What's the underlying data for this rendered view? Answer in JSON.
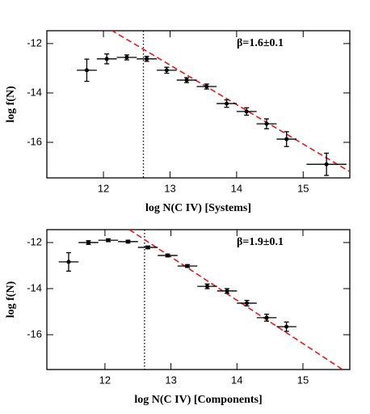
{
  "chart_data": [
    {
      "type": "scatter",
      "x_label": "log N(C IV) [Systems]",
      "y_label": "log f(N)",
      "annotation": "β=1.6±0.1",
      "xlim": [
        11.15,
        15.7
      ],
      "ylim": [
        -17.44,
        -11.48
      ],
      "xticks": [
        12,
        13,
        14,
        15
      ],
      "yticks": [
        -12,
        -14,
        -16
      ],
      "series": [
        {
          "color": "#000000",
          "x": [
            11.75,
            12.05,
            12.35,
            12.65,
            12.95,
            13.25,
            13.55,
            13.85,
            14.15,
            14.45,
            14.75,
            15.35
          ],
          "values": [
            -13.08,
            -12.62,
            -12.56,
            -12.62,
            -13.08,
            -13.48,
            -13.74,
            -14.43,
            -14.75,
            -15.25,
            -15.87,
            -16.89
          ],
          "yerr": [
            0.45,
            0.2,
            0.1,
            0.1,
            0.12,
            0.1,
            0.1,
            0.15,
            0.15,
            0.2,
            0.3,
            0.45
          ],
          "xerr": [
            0.15,
            0.15,
            0.15,
            0.15,
            0.15,
            0.15,
            0.15,
            0.15,
            0.15,
            0.15,
            0.15,
            0.3
          ]
        }
      ],
      "fit": {
        "color": "#e41a1c",
        "x": [
          12.0,
          15.7
        ],
        "y": [
          -11.27,
          -17.19
        ]
      },
      "threshold_x": 12.6
    },
    {
      "type": "scatter",
      "x_label": "log N(C IV) [Components]",
      "y_label": "log f(N)",
      "annotation": "β=1.9±0.1",
      "xlim": [
        11.12,
        15.71
      ],
      "ylim": [
        -17.51,
        -11.44
      ],
      "xticks": [
        12,
        13,
        14,
        15
      ],
      "yticks": [
        -12,
        -14,
        -16
      ],
      "series": [
        {
          "color": "#000000",
          "x": [
            11.45,
            11.75,
            12.05,
            12.35,
            12.65,
            12.95,
            13.25,
            13.55,
            13.85,
            14.15,
            14.45,
            14.75
          ],
          "values": [
            -12.84,
            -12.0,
            -11.9,
            -11.96,
            -12.21,
            -12.56,
            -13.02,
            -13.9,
            -14.1,
            -14.63,
            -15.26,
            -15.65
          ],
          "yerr": [
            0.4,
            0.08,
            0.06,
            0.06,
            0.06,
            0.06,
            0.06,
            0.1,
            0.1,
            0.12,
            0.15,
            0.2
          ],
          "xerr": [
            0.15,
            0.15,
            0.15,
            0.15,
            0.15,
            0.15,
            0.15,
            0.15,
            0.15,
            0.15,
            0.15,
            0.15
          ]
        }
      ],
      "fit": {
        "color": "#e41a1c",
        "x": [
          12.37,
          15.6
        ],
        "y": [
          -11.44,
          -17.51
        ]
      },
      "threshold_x": 12.6
    }
  ]
}
